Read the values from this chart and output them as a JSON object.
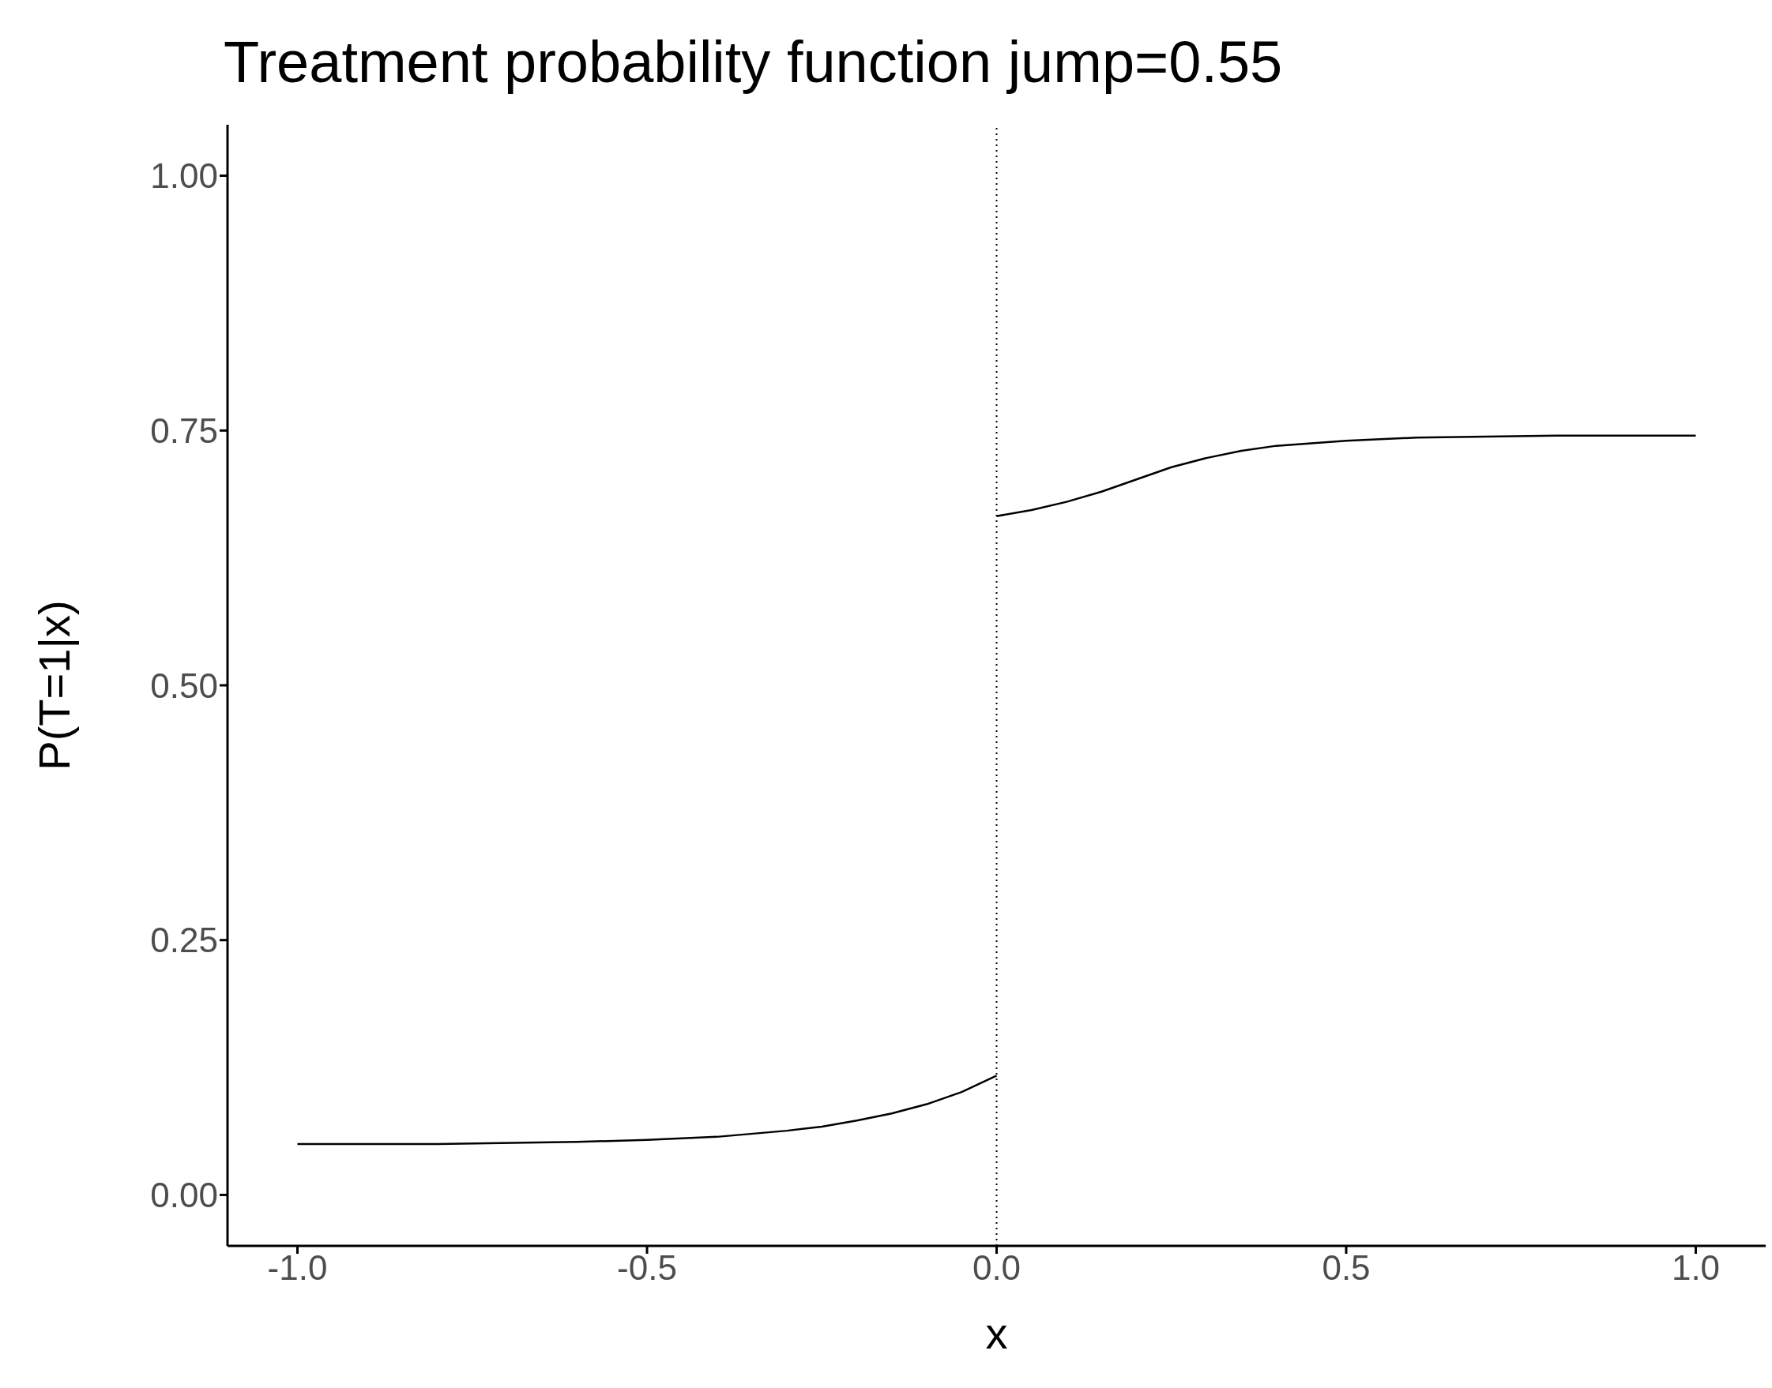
{
  "chart_data": {
    "type": "line",
    "title": "Treatment probability function jump=0.55",
    "xlabel": "x",
    "ylabel": "P(T=1|x)",
    "series": [
      {
        "color": "#000000",
        "x": [
          -1.0,
          -0.8,
          -0.6,
          -0.5,
          -0.4,
          -0.3,
          -0.25,
          -0.2,
          -0.15,
          -0.1,
          -0.05,
          0.0
        ],
        "values": [
          0.05,
          0.05,
          0.052,
          0.054,
          0.057,
          0.063,
          0.067,
          0.073,
          0.08,
          0.089,
          0.101,
          0.117
        ]
      },
      {
        "color": "#000000",
        "x": [
          0.0,
          0.05,
          0.1,
          0.15,
          0.2,
          0.25,
          0.3,
          0.35,
          0.4,
          0.5,
          0.6,
          0.7,
          0.8,
          0.9,
          1.0
        ],
        "values": [
          0.666,
          0.672,
          0.68,
          0.69,
          0.702,
          0.714,
          0.723,
          0.73,
          0.735,
          0.74,
          0.743,
          0.744,
          0.745,
          0.745,
          0.745
        ]
      }
    ],
    "xlim": [
      -1.1,
      1.1
    ],
    "xticks": [
      {
        "value": -1,
        "label": "-1.0"
      },
      -0.5,
      {
        "value": 0,
        "label": "0.0"
      },
      0.5,
      {
        "value": 1,
        "label": "1.0"
      }
    ],
    "ylim": [
      -0.05,
      1.05
    ],
    "yticks": [
      {
        "value": 0,
        "label": "0.00"
      },
      0.25,
      {
        "value": 0.5,
        "label": "0.50"
      },
      0.75,
      {
        "value": 1,
        "label": "1.00"
      }
    ],
    "ref_lines": [
      {
        "axis": "x",
        "value": 0,
        "color": "#000000",
        "line_style": "dotted"
      }
    ],
    "grid": false,
    "legend": false,
    "marker": "none",
    "line_style": "solid"
  }
}
